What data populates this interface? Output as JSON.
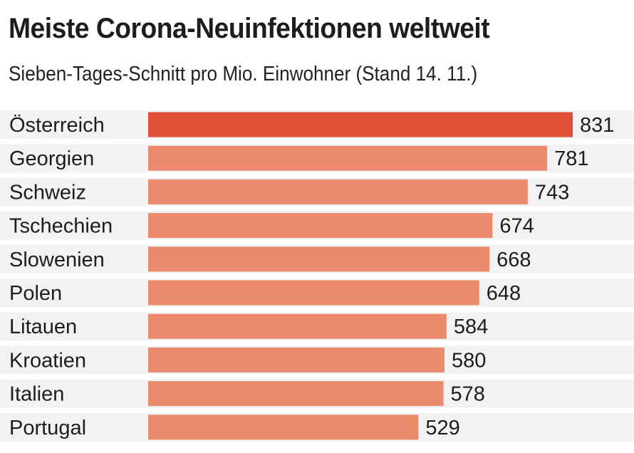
{
  "chart_data": {
    "type": "bar",
    "orientation": "horizontal",
    "title": "Meiste Corona-Neuinfektionen weltweit",
    "subtitle": "Sieben-Tages-Schnitt pro Mio. Einwohner (Stand 14. 11.)",
    "xlabel": "",
    "ylabel": "",
    "categories": [
      "Österreich",
      "Georgien",
      "Schweiz",
      "Tschechien",
      "Slowenien",
      "Polen",
      "Litauen",
      "Kroatien",
      "Italien",
      "Portugal"
    ],
    "values": [
      831,
      781,
      743,
      674,
      668,
      648,
      584,
      580,
      578,
      529
    ],
    "highlight": [
      "Österreich"
    ],
    "xlim": [
      0,
      831
    ],
    "grid": false,
    "legend": "none",
    "colors": {
      "highlight": "#e04f37",
      "default": "#ec8a6d",
      "row_background": "#f1f2f4",
      "text": "#1d1d1b"
    }
  }
}
